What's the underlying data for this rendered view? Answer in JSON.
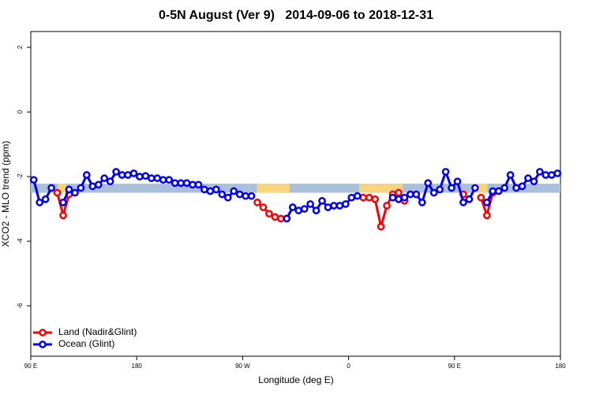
{
  "chart_data": {
    "type": "line",
    "title": "0-5N August (Ver 9)   2014-09-06 to 2018-12-31",
    "xlabel": "Longitude (deg E)",
    "ylabel": "XCO2 - MLO trend (ppm)",
    "xlim": [
      90,
      540
    ],
    "ylim": [
      -7.56,
      2.49
    ],
    "xticks": [
      {
        "value": 90,
        "label": "90 E"
      },
      180,
      {
        "value": 270,
        "label": "90 W"
      },
      {
        "value": 360,
        "label": "0"
      },
      {
        "value": 450,
        "label": "90 E"
      },
      {
        "value": 540,
        "label": "180"
      }
    ],
    "yticks": [
      -6,
      -4,
      -2,
      0,
      2
    ],
    "band": {
      "ylim": [
        -2.5,
        -2.22
      ],
      "color": "#a9bfdc",
      "land_color": "#f7d57f",
      "land": [
        [
          113,
          120
        ],
        [
          282,
          310
        ],
        [
          369,
          406
        ],
        [
          466,
          478
        ]
      ]
    },
    "legend": "bottom-left",
    "x": [
      92.5,
      97.5,
      102.5,
      107.5,
      112.5,
      117.5,
      122.5,
      127.5,
      132.5,
      137.5,
      142.5,
      147.5,
      152.5,
      157.5,
      162.5,
      167.5,
      172.5,
      177.5,
      182.5,
      187.5,
      192.5,
      197.5,
      202.5,
      207.5,
      212.5,
      217.5,
      222.5,
      227.5,
      232.5,
      237.5,
      242.5,
      247.5,
      252.5,
      257.5,
      262.5,
      267.5,
      272.5,
      277.5,
      282.5,
      287.5,
      292.5,
      297.5,
      302.5,
      307.5,
      312.5,
      317.5,
      322.5,
      327.5,
      332.5,
      337.5,
      342.5,
      347.5,
      352.5,
      357.5,
      362.5,
      367.5,
      372.5,
      377.5,
      382.5,
      387.5,
      392.5,
      397.5,
      402.5,
      407.5,
      412.5,
      417.5,
      422.5,
      427.5,
      432.5,
      437.5,
      442.5,
      447.5,
      452.5,
      457.5,
      462.5,
      467.5,
      472.5,
      477.5,
      482.5,
      487.5,
      492.5,
      497.5,
      502.5,
      507.5,
      512.5,
      517.5,
      522.5,
      527.5,
      532.5,
      537.5
    ],
    "series": [
      {
        "name": "Land (Nadir&Glint)",
        "color": "#ff0000",
        "values": [
          null,
          null,
          null,
          null,
          -2.5,
          -3.2,
          -2.55,
          null,
          null,
          null,
          null,
          null,
          null,
          null,
          null,
          null,
          null,
          null,
          null,
          null,
          null,
          null,
          null,
          null,
          null,
          null,
          null,
          null,
          null,
          null,
          null,
          null,
          null,
          null,
          null,
          null,
          null,
          null,
          -2.8,
          -2.95,
          -3.15,
          -3.25,
          -3.3,
          -3.3,
          null,
          null,
          null,
          null,
          null,
          null,
          null,
          null,
          null,
          null,
          null,
          null,
          -2.65,
          -2.65,
          -2.7,
          -3.55,
          -2.9,
          -2.55,
          -2.5,
          -2.75,
          null,
          null,
          null,
          null,
          null,
          null,
          null,
          null,
          null,
          -2.55,
          null,
          null,
          -2.65,
          -3.2,
          -2.5,
          null,
          null,
          null,
          null,
          null,
          null,
          null,
          null,
          null,
          null,
          null
        ]
      },
      {
        "name": "Ocean (Glint)",
        "color": "#0000ee",
        "values": [
          -2.1,
          -2.8,
          -2.7,
          -2.35,
          null,
          -2.8,
          -2.4,
          -2.5,
          -2.35,
          -1.95,
          -2.3,
          -2.25,
          -2.05,
          -2.15,
          -1.85,
          -1.95,
          -1.95,
          -1.9,
          -2.0,
          -1.98,
          -2.05,
          -2.05,
          -2.1,
          -2.1,
          -2.2,
          -2.2,
          -2.2,
          -2.25,
          -2.25,
          -2.4,
          -2.45,
          -2.4,
          -2.55,
          -2.65,
          -2.45,
          -2.55,
          -2.6,
          -2.6,
          null,
          null,
          null,
          null,
          null,
          -3.3,
          -2.95,
          -3.05,
          -3.0,
          -2.85,
          -3.05,
          -2.75,
          -2.95,
          -2.9,
          -2.9,
          -2.85,
          -2.65,
          -2.6,
          null,
          null,
          null,
          null,
          null,
          -2.65,
          -2.7,
          -2.65,
          -2.55,
          -2.55,
          -2.8,
          -2.2,
          -2.5,
          -2.4,
          -1.85,
          -2.35,
          -2.15,
          -2.8,
          -2.7,
          -2.35,
          null,
          -2.8,
          -2.45,
          -2.45,
          -2.35,
          -1.95,
          -2.35,
          -2.3,
          -2.05,
          -2.15,
          -1.85,
          -1.95,
          -1.95,
          -1.9
        ]
      }
    ]
  }
}
